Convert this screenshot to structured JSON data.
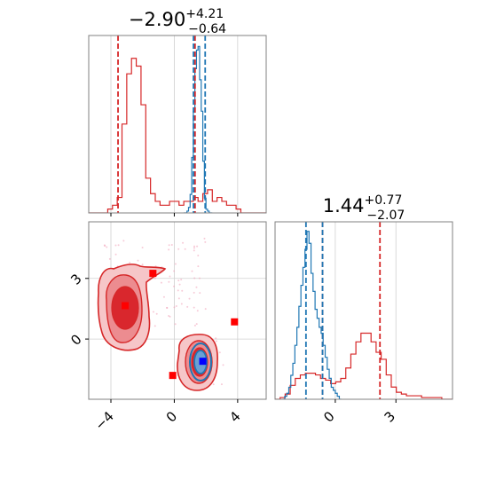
{
  "chart_data": {
    "type": "corner",
    "colors": {
      "red": "#d62728",
      "blue": "#1f77b4",
      "marker_red": "#ff0000",
      "marker_blue": "#0000ff"
    },
    "grid": true,
    "params": [
      {
        "title": {
          "main": "−2.90",
          "sup": "+4.21",
          "sub": "−0.64"
        },
        "range": [
          -5.4,
          5.8
        ],
        "ticks": [
          -4,
          0,
          4
        ],
        "tick_labels": [
          "−4",
          "0",
          "4"
        ],
        "red_lines": [
          -3.55,
          1.31
        ],
        "blue_lines": [
          1.21,
          1.95
        ]
      },
      {
        "title": {
          "main": "1.44",
          "sup": "+0.77",
          "sub": "−2.07"
        },
        "range": [
          -2.98,
          5.8
        ],
        "ticks": [
          0,
          3
        ],
        "tick_labels": [
          "0",
          "3"
        ],
        "red_lines": [
          -0.63,
          2.21
        ],
        "blue_lines": [
          -1.45,
          -0.63
        ]
      }
    ],
    "hist1": {
      "red": {
        "x_start": -5.4,
        "bin_width": 0.3,
        "values": [
          0,
          0,
          0,
          0,
          1,
          2,
          4,
          23,
          36,
          40,
          38,
          28,
          9,
          5,
          3,
          2,
          2,
          3,
          3,
          2,
          3,
          3,
          4,
          3,
          5,
          6,
          3,
          4,
          3,
          2,
          2,
          1,
          0,
          0,
          0,
          0,
          0,
          0
        ]
      },
      "blue": {
        "x_start": 0.6,
        "bin_width": 0.1,
        "values": [
          0,
          0,
          1,
          3,
          10,
          30,
          55,
          78,
          88,
          90,
          72,
          55,
          28,
          8,
          2,
          1,
          0,
          0
        ]
      }
    },
    "hist2": {
      "red": {
        "x_start": -2.98,
        "bin_width": 0.25,
        "values": [
          0,
          1,
          3,
          8,
          12,
          14,
          15,
          15,
          14,
          12,
          11,
          9,
          10,
          12,
          18,
          26,
          33,
          38,
          38,
          33,
          27,
          23,
          14,
          7,
          4,
          3,
          2,
          2,
          2,
          1,
          1,
          1,
          1,
          0,
          0,
          0
        ]
      },
      "blue": {
        "x_start": -2.6,
        "bin_width": 0.1,
        "values": [
          0,
          1,
          2,
          4,
          8,
          12,
          18,
          24,
          31,
          38,
          44,
          50,
          56,
          52,
          42,
          36,
          30,
          27,
          24,
          22,
          18,
          14,
          10,
          7,
          4,
          3,
          2,
          1,
          0
        ]
      }
    },
    "scatter2d": {
      "x_range": [
        -5.4,
        5.8
      ],
      "y_range": [
        -2.98,
        5.8
      ],
      "x_ticks": [
        -4,
        0,
        4
      ],
      "y_ticks": [
        0,
        3
      ],
      "x_tick_labels": [
        "−4",
        "0",
        "4"
      ],
      "y_tick_labels": [
        "0",
        "3"
      ],
      "red_markers": [
        [
          -3.1,
          1.65
        ],
        [
          -1.35,
          3.25
        ],
        [
          -0.1,
          -1.8
        ],
        [
          3.8,
          0.85
        ]
      ],
      "blue_markers": [
        [
          1.8,
          -1.1
        ]
      ]
    }
  }
}
